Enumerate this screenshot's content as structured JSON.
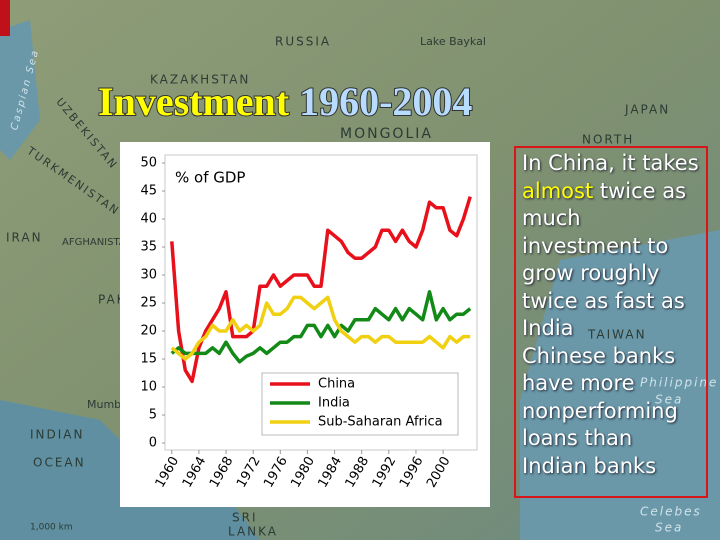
{
  "slide": {
    "title_parts": [
      "Investment",
      "1960-2004"
    ],
    "map_labels": [
      "RUSSIA",
      "Lake Baykal",
      "KAZAKHSTAN",
      "MONGOLIA",
      "JAPAN",
      "NORTH",
      "IRAN",
      "AFGHANISTAN",
      "PAKISTAN",
      "INDIAN",
      "OCEAN",
      "Mumbai",
      "TAIWAN",
      "Philippine",
      "Sea",
      "Celebes",
      "Sea",
      "SRI",
      "LANKA",
      "1,000 km",
      "UZBEKISTAN",
      "TURKMENISTAN",
      "Caspian Sea"
    ],
    "text_box": {
      "paragraph_1": [
        "In China, it takes ",
        "almost",
        " twice as much investment to grow roughly twice as fast as India"
      ],
      "paragraph_2": "Chinese banks have more nonperforming loans than Indian banks"
    }
  },
  "chart_data": {
    "type": "line",
    "y_label": "% of GDP",
    "x": [
      1960,
      1961,
      1962,
      1963,
      1964,
      1965,
      1966,
      1967,
      1968,
      1969,
      1970,
      1971,
      1972,
      1973,
      1974,
      1975,
      1976,
      1977,
      1978,
      1979,
      1980,
      1981,
      1982,
      1983,
      1984,
      1985,
      1986,
      1987,
      1988,
      1989,
      1990,
      1991,
      1992,
      1993,
      1994,
      1995,
      1996,
      1997,
      1998,
      1999,
      2000,
      2001,
      2002,
      2003,
      2004
    ],
    "series": [
      {
        "name": "China",
        "color": "#e8101a",
        "values": [
          36,
          20,
          13,
          11,
          17,
          20,
          22,
          24,
          27,
          19,
          19,
          19,
          20,
          28,
          28,
          30,
          28,
          29,
          30,
          30,
          30,
          28,
          28,
          38,
          37,
          36,
          34,
          33,
          33,
          34,
          35,
          38,
          38,
          36,
          38,
          36,
          35,
          38,
          43,
          42,
          42,
          38,
          37,
          40,
          44
        ]
      },
      {
        "name": "India",
        "color": "#138a17",
        "values": [
          16,
          17,
          16,
          16,
          16,
          16,
          17,
          16,
          18,
          16,
          14.5,
          15.5,
          16,
          17,
          16,
          17,
          18,
          18,
          19,
          19,
          21,
          21,
          19,
          21,
          19,
          21,
          20,
          22,
          22,
          22,
          24,
          23,
          22,
          24,
          22,
          24,
          23,
          22,
          27,
          22,
          24,
          22,
          23,
          23,
          24
        ]
      },
      {
        "name": "Sub-Saharan Africa",
        "color": "#f0d010",
        "values": [
          17,
          16,
          15,
          16,
          18,
          19,
          21,
          20,
          20,
          22,
          20,
          21,
          20,
          21,
          25,
          23,
          23,
          24,
          26,
          26,
          25,
          24,
          25,
          26,
          22,
          20,
          19,
          18,
          19,
          19,
          18,
          19,
          19,
          18,
          18,
          18,
          18,
          18,
          19,
          18,
          17,
          19,
          18,
          19,
          19
        ]
      }
    ],
    "xlim": [
      1959,
      2005
    ],
    "xticks": [
      1960,
      1964,
      1968,
      1972,
      1976,
      1980,
      1984,
      1988,
      1992,
      1996,
      2000
    ],
    "ylim": [
      0,
      50
    ],
    "yticks": [
      0,
      5,
      10,
      15,
      20,
      25,
      30,
      35,
      40,
      45,
      50
    ],
    "grid": false,
    "legend": "lower right"
  }
}
